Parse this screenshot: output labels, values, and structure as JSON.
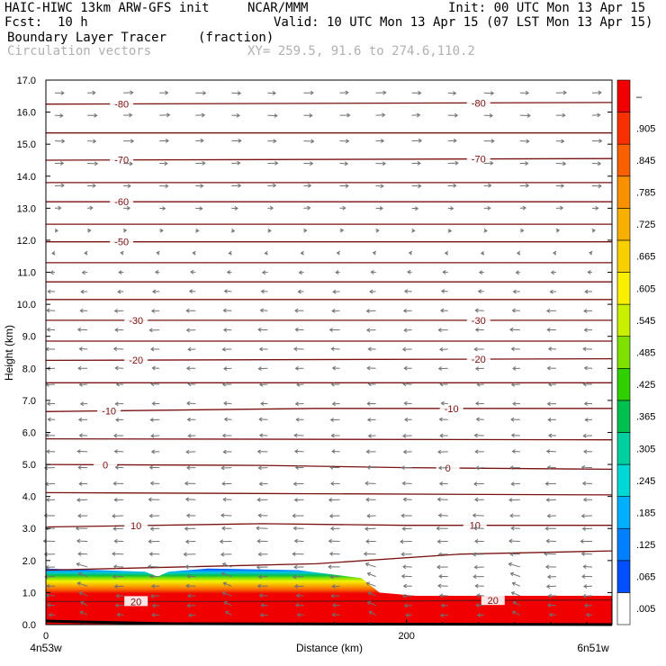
{
  "header": {
    "model": "HAIC-HIWC 13km ARW-GFS init",
    "org": "NCAR/MMM",
    "init": "Init: 00 UTC Mon 13 Apr 15",
    "fcst_label": "Fcst:",
    "fcst_value": "10 h",
    "valid": "Valid: 10 UTC Mon 13 Apr 15 (07 LST Mon 13 Apr 15)",
    "field": "Boundary Layer Tracer",
    "field_units": "(fraction)",
    "overlay": "Circulation vectors",
    "xy": "XY= 259.5, 91.6 to 274.6,110.2"
  },
  "chart_data": {
    "type": "heatmap",
    "ylabel": "Height (km)",
    "xlabel": "Distance (km)",
    "ylim": [
      0,
      17
    ],
    "xlim": [
      0,
      314
    ],
    "y_ticks": [
      "0.0",
      "1.0",
      "2.0",
      "3.0",
      "4.0",
      "5.0",
      "6.0",
      "7.0",
      "8.0",
      "9.0",
      "10.0",
      "11.0",
      "12.0",
      "13.0",
      "14.0",
      "15.0",
      "16.0",
      "17.0"
    ],
    "x_ticks": [
      {
        "x": 0,
        "label": "0"
      },
      {
        "x": 200,
        "label": "200"
      }
    ],
    "x_end_labels": {
      "left": "4n53w",
      "right": "6n51w"
    },
    "colorbar": {
      "labels": [
        ".005",
        ".065",
        ".125",
        ".185",
        ".245",
        ".305",
        ".365",
        ".425",
        ".485",
        ".545",
        ".605",
        ".665",
        ".725",
        ".785",
        ".845",
        ".905",
        "–"
      ],
      "colors": [
        "#ffffff",
        "#0050ff",
        "#0080ff",
        "#00b0ff",
        "#00d8d8",
        "#00d0a0",
        "#00c050",
        "#30d000",
        "#80e000",
        "#c8f000",
        "#f8f000",
        "#f8d000",
        "#f8b000",
        "#f89000",
        "#f86000",
        "#f83000",
        "#f00000"
      ]
    },
    "tracer_top_km": [
      {
        "x": 0,
        "y": 1.75
      },
      {
        "x": 30,
        "y": 1.7
      },
      {
        "x": 55,
        "y": 1.65
      },
      {
        "x": 62,
        "y": 1.5
      },
      {
        "x": 68,
        "y": 1.65
      },
      {
        "x": 90,
        "y": 1.75
      },
      {
        "x": 140,
        "y": 1.7
      },
      {
        "x": 175,
        "y": 1.45
      },
      {
        "x": 185,
        "y": 1.0
      },
      {
        "x": 205,
        "y": 0.9
      },
      {
        "x": 314,
        "y": 0.9
      }
    ],
    "isotherms": [
      {
        "label": "20",
        "label_x": [
          50,
          248
        ],
        "pts": [
          [
            0,
            0.72
          ],
          [
            100,
            0.72
          ],
          [
            200,
            0.74
          ],
          [
            314,
            0.77
          ]
        ]
      },
      {
        "label": "",
        "pts": [
          [
            0,
            1.7
          ],
          [
            150,
            1.9
          ],
          [
            230,
            2.2
          ],
          [
            314,
            2.3
          ]
        ]
      },
      {
        "label": "10",
        "label_x": [
          50,
          238
        ],
        "pts": [
          [
            0,
            3.05
          ],
          [
            120,
            3.15
          ],
          [
            200,
            3.1
          ],
          [
            314,
            3.1
          ]
        ]
      },
      {
        "label": "",
        "pts": [
          [
            0,
            4.12
          ],
          [
            314,
            4.05
          ]
        ]
      },
      {
        "label": "0",
        "label_x": [
          33,
          223
        ],
        "pts": [
          [
            0,
            5.0
          ],
          [
            120,
            4.97
          ],
          [
            200,
            4.9
          ],
          [
            314,
            4.85
          ]
        ]
      },
      {
        "label": "",
        "pts": [
          [
            0,
            5.8
          ],
          [
            314,
            5.77
          ]
        ]
      },
      {
        "label": "-10",
        "label_x": [
          35,
          225
        ],
        "pts": [
          [
            0,
            6.65
          ],
          [
            150,
            6.75
          ],
          [
            314,
            6.75
          ]
        ]
      },
      {
        "label": "",
        "pts": [
          [
            0,
            7.55
          ],
          [
            314,
            7.55
          ]
        ]
      },
      {
        "label": "-20",
        "label_x": [
          50,
          240
        ],
        "pts": [
          [
            0,
            8.25
          ],
          [
            314,
            8.3
          ]
        ]
      },
      {
        "label": "",
        "pts": [
          [
            0,
            8.85
          ],
          [
            314,
            8.85
          ]
        ]
      },
      {
        "label": "-30",
        "label_x": [
          50,
          240
        ],
        "pts": [
          [
            0,
            9.5
          ],
          [
            314,
            9.5
          ]
        ]
      },
      {
        "label": "",
        "pts": [
          [
            0,
            10.15
          ],
          [
            314,
            10.15
          ]
        ]
      },
      {
        "label": "",
        "pts": [
          [
            0,
            10.7
          ],
          [
            314,
            10.7
          ]
        ]
      },
      {
        "label": "",
        "pts": [
          [
            0,
            11.3
          ],
          [
            314,
            11.3
          ]
        ]
      },
      {
        "label": "-50",
        "label_x": [
          42,
          0
        ],
        "pts": [
          [
            0,
            11.95
          ],
          [
            314,
            11.95
          ]
        ]
      },
      {
        "label": "",
        "pts": [
          [
            0,
            12.5
          ],
          [
            314,
            12.5
          ]
        ]
      },
      {
        "label": "-60",
        "label_x": [
          42,
          0
        ],
        "pts": [
          [
            0,
            13.2
          ],
          [
            314,
            13.2
          ]
        ]
      },
      {
        "label": "",
        "pts": [
          [
            0,
            13.8
          ],
          [
            314,
            13.8
          ]
        ]
      },
      {
        "label": "-70",
        "label_x": [
          42,
          240
        ],
        "pts": [
          [
            0,
            14.5
          ],
          [
            314,
            14.55
          ]
        ]
      },
      {
        "label": "",
        "pts": [
          [
            0,
            15.35
          ],
          [
            314,
            15.35
          ]
        ]
      },
      {
        "label": "-80",
        "label_x": [
          42,
          240
        ],
        "pts": [
          [
            0,
            16.25
          ],
          [
            314,
            16.3
          ]
        ]
      }
    ],
    "vector_rows_km": [
      0.3,
      0.6,
      0.9,
      1.2,
      1.5,
      1.8,
      2.2,
      2.6,
      3.0,
      3.4,
      3.9,
      4.4,
      4.9,
      5.4,
      5.9,
      6.4,
      6.9,
      7.5,
      8.0,
      8.6,
      9.2,
      9.8,
      10.4,
      11.0,
      11.6,
      12.3,
      13.0,
      13.7,
      14.4,
      15.1,
      15.9,
      16.6
    ],
    "vector_cols_km": [
      5,
      23,
      43,
      63,
      83,
      103,
      123,
      143,
      163,
      183,
      203,
      223,
      243,
      263,
      283,
      303
    ],
    "wind_profile": [
      {
        "z": 0.0,
        "u": -4
      },
      {
        "z": 2.0,
        "u": -7
      },
      {
        "z": 5.0,
        "u": -6
      },
      {
        "z": 7.0,
        "u": -5
      },
      {
        "z": 9.5,
        "u": -6
      },
      {
        "z": 11.5,
        "u": -2
      },
      {
        "z": 12.5,
        "u": 3
      },
      {
        "z": 14.0,
        "u": 6
      },
      {
        "z": 17.0,
        "u": 6
      }
    ]
  }
}
